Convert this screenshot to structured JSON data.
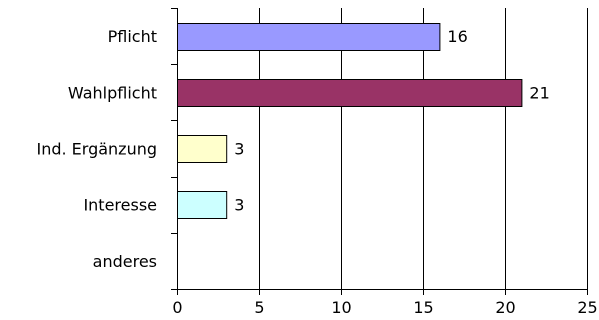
{
  "chart_data": {
    "type": "bar",
    "orientation": "horizontal",
    "categories": [
      "Pflicht",
      "Wahlpflicht",
      "Ind. Ergänzung",
      "Interesse",
      "anderes"
    ],
    "values": [
      16,
      21,
      3,
      3,
      0
    ],
    "data_labels": [
      "16",
      "21",
      "3",
      "3",
      ""
    ],
    "colors": [
      "#9999ff",
      "#993366",
      "#ffffcc",
      "#ccffff",
      "#cccccc"
    ],
    "xlim": [
      0,
      25
    ],
    "xticks": [
      0,
      5,
      10,
      15,
      20,
      25
    ],
    "grid": "vertical",
    "title": "",
    "xlabel": "",
    "ylabel": ""
  }
}
